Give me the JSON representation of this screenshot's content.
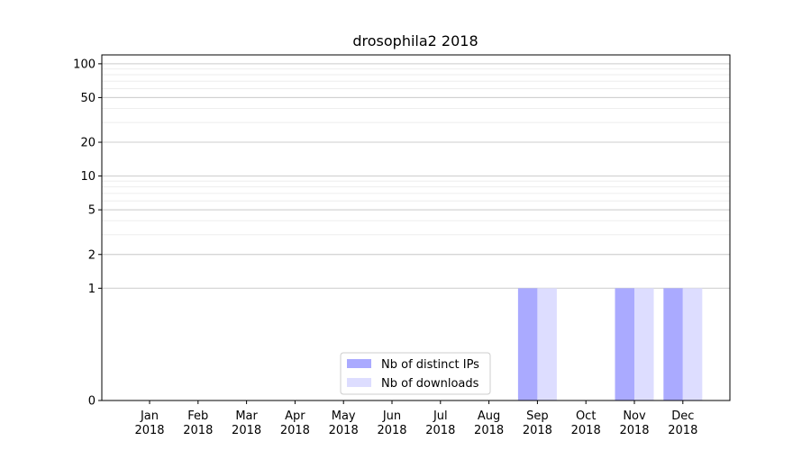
{
  "chart_data": {
    "type": "bar",
    "title": "drosophila2 2018",
    "xlabel": "",
    "ylabel": "",
    "yscale": "symlog",
    "ylim": [
      0,
      120
    ],
    "yticks": [
      0,
      1,
      2,
      5,
      10,
      20,
      50,
      100
    ],
    "grid": true,
    "legend_position": "lower-center",
    "categories": [
      "Jan 2018",
      "Feb 2018",
      "Mar 2018",
      "Apr 2018",
      "May 2018",
      "Jun 2018",
      "Jul 2018",
      "Aug 2018",
      "Sep 2018",
      "Oct 2018",
      "Nov 2018",
      "Dec 2018"
    ],
    "category_labels": [
      {
        "month": "Jan",
        "year": "2018"
      },
      {
        "month": "Feb",
        "year": "2018"
      },
      {
        "month": "Mar",
        "year": "2018"
      },
      {
        "month": "Apr",
        "year": "2018"
      },
      {
        "month": "May",
        "year": "2018"
      },
      {
        "month": "Jun",
        "year": "2018"
      },
      {
        "month": "Jul",
        "year": "2018"
      },
      {
        "month": "Aug",
        "year": "2018"
      },
      {
        "month": "Sep",
        "year": "2018"
      },
      {
        "month": "Oct",
        "year": "2018"
      },
      {
        "month": "Nov",
        "year": "2018"
      },
      {
        "month": "Dec",
        "year": "2018"
      }
    ],
    "series": [
      {
        "name": "Nb of distinct IPs",
        "color": "#aaaaff",
        "values": [
          0,
          0,
          0,
          0,
          0,
          0,
          0,
          0,
          1,
          0,
          1,
          1
        ]
      },
      {
        "name": "Nb of downloads",
        "color": "#ddddff",
        "values": [
          0,
          0,
          0,
          0,
          0,
          0,
          0,
          0,
          1,
          0,
          1,
          1
        ]
      }
    ]
  }
}
